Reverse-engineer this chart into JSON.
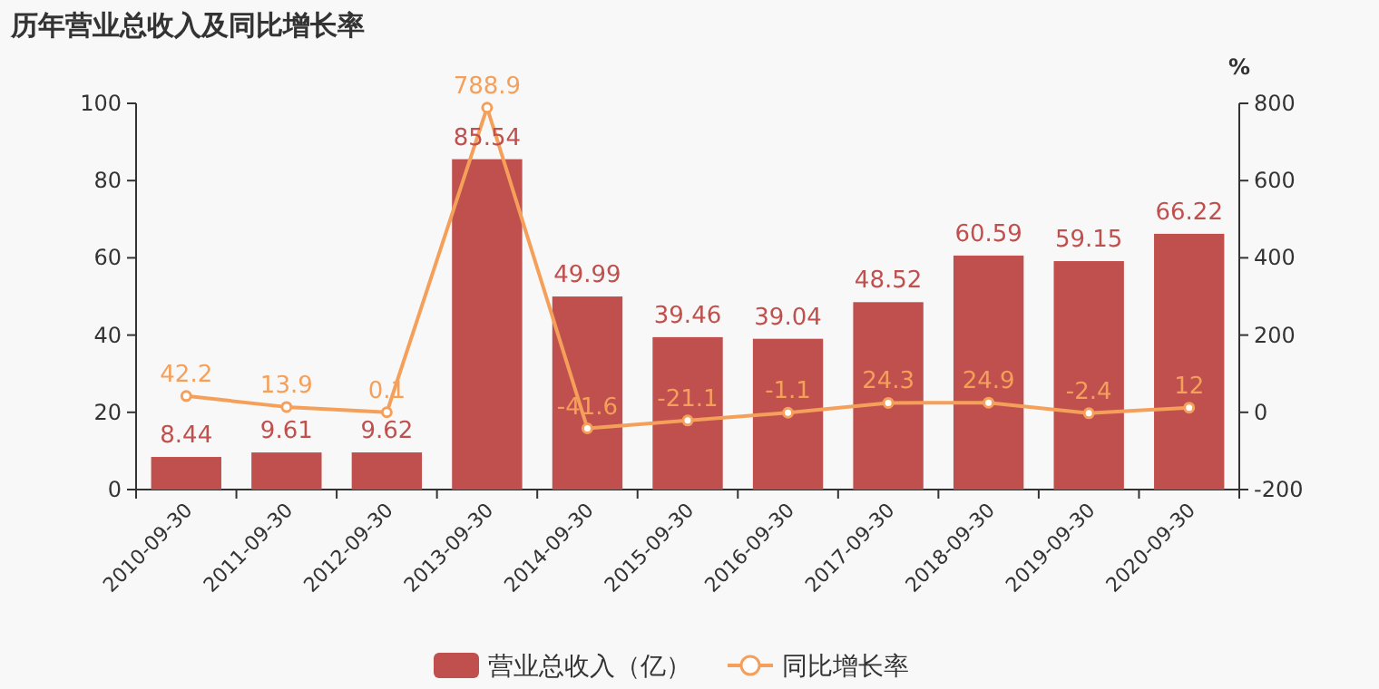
{
  "chart_data": {
    "type": "bar",
    "title": "历年营业总收入及同比增长率",
    "categories": [
      "2010-09-30",
      "2011-09-30",
      "2012-09-30",
      "2013-09-30",
      "2014-09-30",
      "2015-09-30",
      "2016-09-30",
      "2017-09-30",
      "2018-09-30",
      "2019-09-30",
      "2020-09-30"
    ],
    "series": [
      {
        "name": "营业总收入（亿）",
        "color": "#c0504d",
        "values": [
          8.44,
          9.61,
          9.62,
          85.54,
          49.99,
          39.46,
          39.04,
          48.52,
          60.59,
          59.15,
          66.22
        ]
      },
      {
        "name": "同比增长率",
        "type": "line",
        "axis": "y2",
        "color": "#f5a05a",
        "values": [
          42.2,
          13.9,
          0.1,
          788.9,
          -41.6,
          -21.1,
          -1.1,
          24.3,
          24.9,
          -2.4,
          12
        ]
      }
    ],
    "ylim": [
      0,
      100
    ],
    "yticks": [
      0,
      20,
      40,
      60,
      80,
      100
    ],
    "y2lim": [
      -200,
      800
    ],
    "y2ticks": [
      -200,
      0,
      200,
      400,
      600,
      800
    ],
    "y2label": "%",
    "data_labels": true,
    "legend": "bottom",
    "marker": "circle",
    "grid": false
  }
}
